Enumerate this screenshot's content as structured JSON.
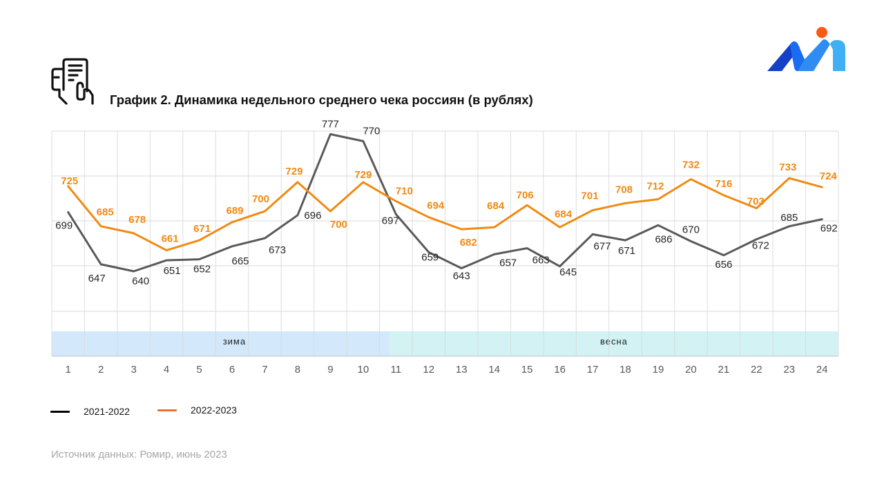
{
  "header": {
    "title": "График 2. Динамика недельного среднего чека россиян (в рублях)",
    "icon": "receipt-in-hand-icon",
    "logo": "romir-logo"
  },
  "colors": {
    "series_2021_2022": "#595959",
    "series_2022_2023": "#f08a12",
    "legend_2021_2022": "#000000",
    "legend_2022_2023": "#e8702a",
    "grid": "#d9d9d9",
    "season_winter": "#d3e8fb",
    "season_spring": "#d2f2f4",
    "source_text": "#a6a6a6",
    "logo_dark_blue": "#1640c8",
    "logo_blue": "#1a6cf0",
    "logo_light_blue": "#3fb0f5",
    "logo_dot": "#fa5a14"
  },
  "chart_data": {
    "type": "line",
    "title": "График 2. Динамика недельного среднего чека россиян (в рублях)",
    "xlabel": "",
    "ylabel": "",
    "categories": [
      "1",
      "2",
      "3",
      "4",
      "5",
      "6",
      "7",
      "8",
      "9",
      "10",
      "11",
      "12",
      "13",
      "14",
      "15",
      "16",
      "17",
      "18",
      "19",
      "20",
      "21",
      "22",
      "23",
      "24"
    ],
    "ylim": [
      600,
      780
    ],
    "y_gridlines": [
      600,
      650,
      700,
      750
    ],
    "grid": true,
    "y_axis_labels_shown": false,
    "series": [
      {
        "name": "2021-2022",
        "values": [
          699,
          647,
          640,
          651,
          652,
          665,
          673,
          696,
          777,
          770,
          697,
          659,
          643,
          657,
          663,
          645,
          677,
          671,
          686,
          670,
          656,
          672,
          685,
          692
        ]
      },
      {
        "name": "2022-2023",
        "values": [
          725,
          685,
          678,
          661,
          671,
          689,
          700,
          729,
          700,
          729,
          710,
          694,
          682,
          684,
          706,
          684,
          701,
          708,
          712,
          732,
          716,
          703,
          733,
          724
        ]
      }
    ],
    "seasons": [
      {
        "label": "зима",
        "from_week": 1,
        "to_week": 10.8
      },
      {
        "label": "весна",
        "from_week": 10.8,
        "to_week": 24
      }
    ],
    "legend": {
      "position": "bottom-left",
      "entries": [
        "2021-2022",
        "2022-2023"
      ]
    }
  },
  "legend": {
    "items": [
      {
        "label": "2021-2022"
      },
      {
        "label": "2022-2023"
      }
    ]
  },
  "footer": {
    "source": "Источник данных: Ромир, июнь 2023"
  }
}
